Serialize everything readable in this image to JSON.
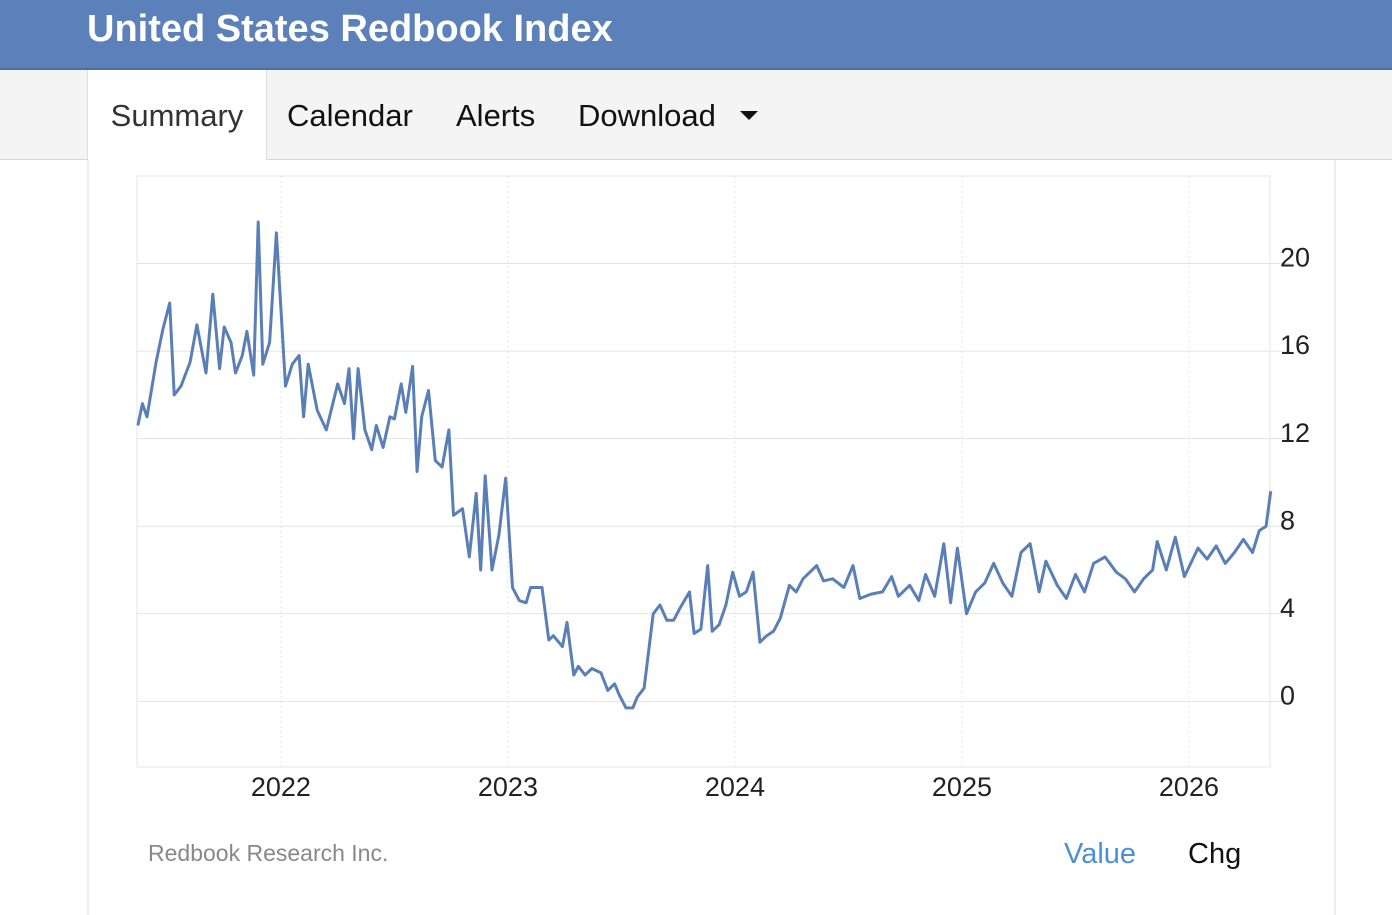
{
  "header": {
    "title": "United States Redbook Index"
  },
  "tabs": [
    "Summary",
    "Calendar",
    "Alerts",
    "Download"
  ],
  "footer": {
    "source": "Redbook Research Inc.",
    "toggles": [
      "Value",
      "Chg"
    ]
  },
  "chart_data": {
    "type": "line",
    "color": "#5a7fb7",
    "grid": true,
    "xlim": [
      2021.366,
      2026.357
    ],
    "xticks": [
      2022,
      2023,
      2024,
      2025,
      2026
    ],
    "ylim": [
      -3,
      24
    ],
    "yticks": [
      0,
      4,
      8,
      12,
      16,
      20
    ],
    "x": [
      2021.37,
      2021.39,
      2021.41,
      2021.45,
      2021.48,
      2021.51,
      2021.53,
      2021.56,
      2021.6,
      2021.63,
      2021.67,
      2021.7,
      2021.73,
      2021.75,
      2021.78,
      2021.8,
      2021.83,
      2021.85,
      2021.88,
      2021.9,
      2021.92,
      2021.95,
      2021.98,
      2022.02,
      2022.05,
      2022.08,
      2022.1,
      2022.12,
      2022.16,
      2022.2,
      2022.25,
      2022.28,
      2022.3,
      2022.32,
      2022.34,
      2022.37,
      2022.4,
      2022.42,
      2022.45,
      2022.48,
      2022.5,
      2022.53,
      2022.55,
      2022.58,
      2022.6,
      2022.62,
      2022.65,
      2022.68,
      2022.71,
      2022.74,
      2022.76,
      2022.8,
      2022.83,
      2022.86,
      2022.88,
      2022.9,
      2022.93,
      2022.96,
      2022.99,
      2023.02,
      2023.05,
      2023.08,
      2023.1,
      2023.15,
      2023.18,
      2023.2,
      2023.24,
      2023.26,
      2023.29,
      2023.31,
      2023.34,
      2023.37,
      2023.41,
      2023.44,
      2023.47,
      2023.49,
      2023.52,
      2023.55,
      2023.57,
      2023.6,
      2023.64,
      2023.67,
      2023.7,
      2023.73,
      2023.76,
      2023.8,
      2023.82,
      2023.85,
      2023.88,
      2023.9,
      2023.93,
      2023.96,
      2023.99,
      2024.02,
      2024.05,
      2024.08,
      2024.11,
      2024.14,
      2024.17,
      2024.2,
      2024.24,
      2024.27,
      2024.3,
      2024.36,
      2024.39,
      2024.43,
      2024.48,
      2024.52,
      2024.55,
      2024.6,
      2024.65,
      2024.69,
      2024.72,
      2024.77,
      2024.81,
      2024.84,
      2024.88,
      2024.92,
      2024.95,
      2024.98,
      2025.02,
      2025.06,
      2025.1,
      2025.14,
      2025.18,
      2025.22,
      2025.26,
      2025.3,
      2025.34,
      2025.37,
      2025.42,
      2025.46,
      2025.5,
      2025.54,
      2025.58,
      2025.63,
      2025.68,
      2025.72,
      2025.76,
      2025.8,
      2025.84,
      2025.86,
      2025.9,
      2025.94,
      2025.98,
      2026.04,
      2026.08,
      2026.12,
      2026.16,
      2026.2,
      2026.24,
      2026.28,
      2026.31,
      2026.34,
      2026.36
    ],
    "values": [
      12.6,
      13.6,
      13.0,
      15.5,
      17.0,
      18.2,
      14.0,
      14.4,
      15.5,
      17.2,
      15.0,
      18.6,
      15.2,
      17.1,
      16.4,
      15.0,
      15.8,
      16.9,
      14.9,
      21.9,
      15.4,
      16.4,
      21.4,
      14.4,
      15.4,
      15.8,
      13.0,
      15.4,
      13.3,
      12.4,
      14.5,
      13.6,
      15.2,
      12.0,
      15.2,
      12.4,
      11.5,
      12.6,
      11.6,
      13.0,
      12.9,
      14.5,
      13.2,
      15.3,
      10.5,
      13.0,
      14.2,
      11.0,
      10.7,
      12.4,
      8.5,
      8.8,
      6.6,
      9.5,
      6.0,
      10.3,
      6.0,
      7.6,
      10.2,
      5.2,
      4.6,
      4.5,
      5.2,
      5.2,
      2.8,
      3.0,
      2.5,
      3.6,
      1.2,
      1.6,
      1.2,
      1.5,
      1.3,
      0.5,
      0.8,
      0.3,
      -0.3,
      -0.3,
      0.2,
      0.6,
      4.0,
      4.4,
      3.7,
      3.7,
      4.3,
      5.0,
      3.1,
      3.3,
      6.2,
      3.2,
      3.5,
      4.4,
      5.9,
      4.8,
      5.0,
      5.9,
      2.7,
      3.0,
      3.2,
      3.8,
      5.3,
      5.0,
      5.6,
      6.2,
      5.5,
      5.6,
      5.2,
      6.2,
      4.7,
      4.9,
      5.0,
      5.7,
      4.8,
      5.3,
      4.6,
      5.8,
      4.8,
      7.2,
      4.5,
      7.0,
      4.0,
      5.0,
      5.4,
      6.3,
      5.4,
      4.8,
      6.8,
      7.2,
      5.0,
      6.4,
      5.3,
      4.7,
      5.8,
      5.0,
      6.3,
      6.6,
      5.9,
      5.6,
      5.0,
      5.6,
      6.0,
      7.3,
      6.0,
      7.5,
      5.7,
      7.0,
      6.5,
      7.1,
      6.3,
      6.8,
      7.4,
      6.8,
      7.8,
      8.0,
      9.6
    ]
  }
}
